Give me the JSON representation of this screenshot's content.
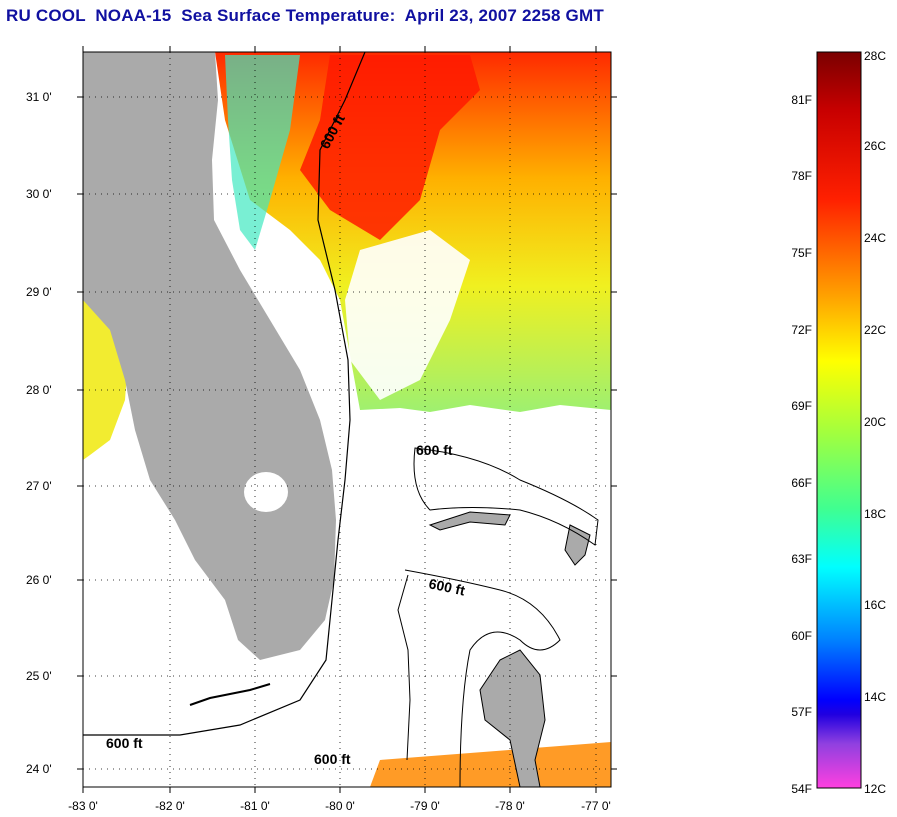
{
  "title": "RU COOL  NOAA-15  Sea Surface Temperature:  April 23, 2007 2258 GMT",
  "map": {
    "lat_labels": [
      "31 0'",
      "30 0'",
      "29 0'",
      "28 0'",
      "27 0'",
      "26 0'",
      "25 0'",
      "24 0'"
    ],
    "lon_labels": [
      "-83 0'",
      "-82 0'",
      "-81 0'",
      "-80 0'",
      "-79 0'",
      "-78 0'",
      "-77 0'"
    ],
    "contour_label": "600 ft",
    "colors": {
      "land": "#aaaaaa",
      "cloud": "#ffffff"
    }
  },
  "colorbar": {
    "fahrenheit_labels": [
      "81F",
      "78F",
      "75F",
      "72F",
      "69F",
      "66F",
      "63F",
      "60F",
      "57F",
      "54F"
    ],
    "celsius_labels": [
      "28C",
      "26C",
      "24C",
      "22C",
      "20C",
      "18C",
      "16C",
      "14C",
      "12C"
    ]
  }
}
